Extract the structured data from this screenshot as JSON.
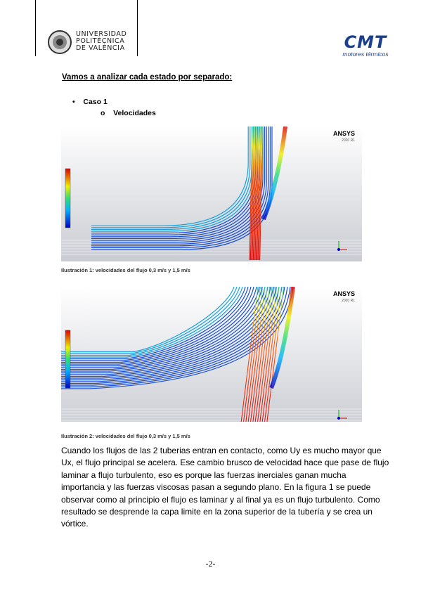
{
  "header": {
    "university": [
      "UNIVERSIDAD",
      "POLITÈCNICA",
      "DE VALÈNCIA"
    ],
    "logo": "CMT",
    "logo_subtitle": "motores térmicos"
  },
  "heading": "Vamos a analizar cada estado por separado:",
  "list": {
    "item": "Caso 1",
    "subitem": "Velocidades"
  },
  "figures": [
    {
      "software": "ANSYS",
      "version": "2020 R1",
      "caption": "Ilustración 1: velocidades del flujo  0,3 m/s y 1,5 m/s"
    },
    {
      "software": "ANSYS",
      "version": "2020 R1",
      "caption": "Ilustración 2: velocidades del flujo  0,3 m/s y 1,5 m/s"
    }
  ],
  "paragraph": "Cuando los flujos de las 2 tuberias entran en contacto, como Uy es mucho mayor que Ux, el flujo principal se acelera. Ese cambio brusco de velocidad hace que pase de flujo laminar a flujo turbulento, eso es porque las fuerzas inerciales ganan mucha importancia y las fuerzas viscosas pasan a segundo plano. En la figura 1 se puede observar como al principio el flujo es laminar y al final ya es un flujo turbulento. Como resultado se desprende la capa limite en la zona superior de la tubería y se crea un vórtice.",
  "page_number": "-2-"
}
